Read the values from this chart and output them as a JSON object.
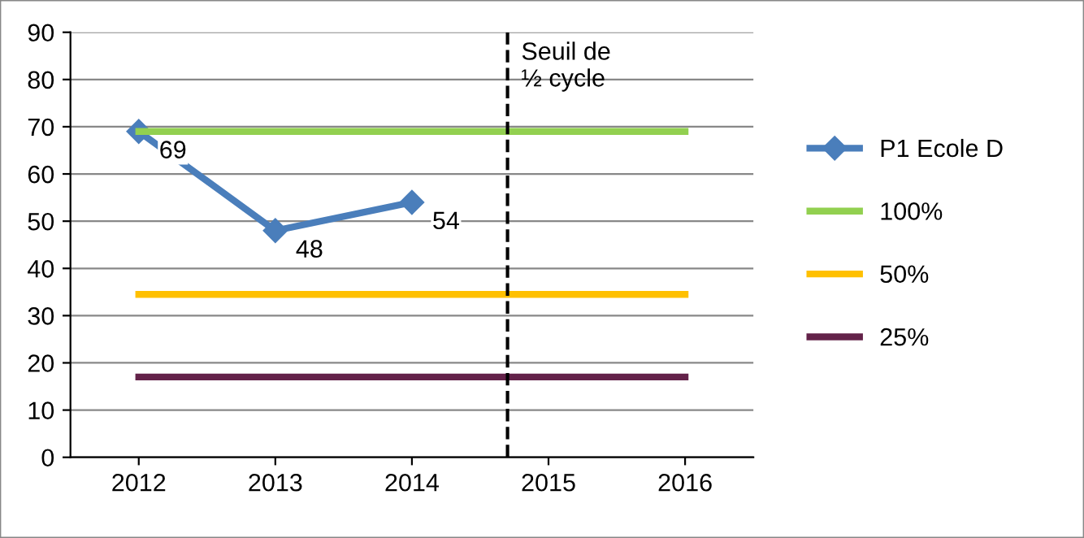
{
  "chart_data": {
    "type": "line",
    "x": [
      2012,
      2013,
      2014,
      2015,
      2016
    ],
    "series": [
      {
        "name": "P1 Ecole D",
        "color": "#4a7ebb",
        "values": [
          69,
          48,
          54,
          null,
          null
        ],
        "marker": "diamond",
        "value_labels": [
          "69",
          "48",
          "54",
          null,
          null
        ]
      },
      {
        "name": "100%",
        "color": "#92d050",
        "values": [
          69,
          69,
          69,
          69,
          69
        ],
        "marker": "none"
      },
      {
        "name": "50%",
        "color": "#ffc000",
        "values": [
          34.5,
          34.5,
          34.5,
          34.5,
          34.5
        ],
        "marker": "none"
      },
      {
        "name": "25%",
        "color": "#632249",
        "values": [
          17,
          17,
          17,
          17,
          17
        ],
        "marker": "none"
      }
    ],
    "xlim": [
      2011.5,
      2016.5
    ],
    "xticks": [
      2012,
      2013,
      2014,
      2015,
      2016
    ],
    "ylim": [
      0,
      90
    ],
    "yticks": [
      0,
      10,
      20,
      30,
      40,
      50,
      60,
      70,
      80,
      90
    ],
    "grid": "y",
    "legend": "right",
    "ref_lines": [
      {
        "axis": "x",
        "value": 2014.7,
        "label": "Seuil de\n½ cycle",
        "color": "#000000",
        "line_style": "dashed"
      }
    ]
  }
}
